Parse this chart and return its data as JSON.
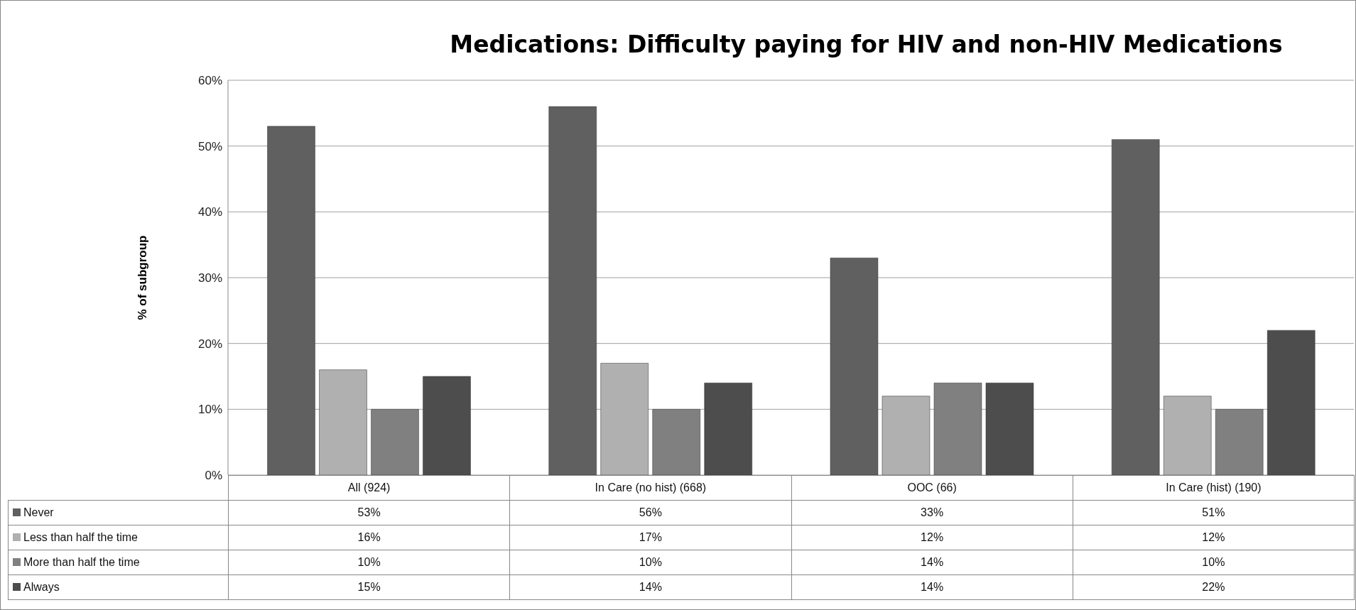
{
  "chart_data": {
    "type": "bar",
    "title": "Medications: Difficulty paying for HIV and non-HIV Medications",
    "ylabel": "% of subgroup",
    "categories": [
      "All (924)",
      "In Care (no hist) (668)",
      "OOC (66)",
      "In Care (hist) (190)"
    ],
    "series": [
      {
        "name": "Never",
        "color": "#606060",
        "values": [
          53,
          56,
          33,
          51
        ],
        "value_labels": [
          "53%",
          "56%",
          "33%",
          "51%"
        ]
      },
      {
        "name": "Less than half the time",
        "color": "#b0b0b0",
        "values": [
          16,
          17,
          12,
          12
        ],
        "value_labels": [
          "16%",
          "17%",
          "12%",
          "12%"
        ]
      },
      {
        "name": "More than half the time",
        "color": "#808080",
        "values": [
          10,
          10,
          14,
          10
        ],
        "value_labels": [
          "10%",
          "10%",
          "14%",
          "10%"
        ]
      },
      {
        "name": "Always",
        "color": "#4d4d4d",
        "values": [
          15,
          14,
          14,
          22
        ],
        "value_labels": [
          "15%",
          "14%",
          "14%",
          "22%"
        ]
      }
    ],
    "ylim": [
      0,
      60
    ],
    "yticks": [
      {
        "value": 0,
        "label": "0%"
      },
      {
        "value": 10,
        "label": "10%"
      },
      {
        "value": 20,
        "label": "20%"
      },
      {
        "value": 30,
        "label": "30%"
      },
      {
        "value": 40,
        "label": "40%"
      },
      {
        "value": 50,
        "label": "50%"
      },
      {
        "value": 60,
        "label": "60%"
      }
    ],
    "grid": "y",
    "legend": "bottom"
  }
}
